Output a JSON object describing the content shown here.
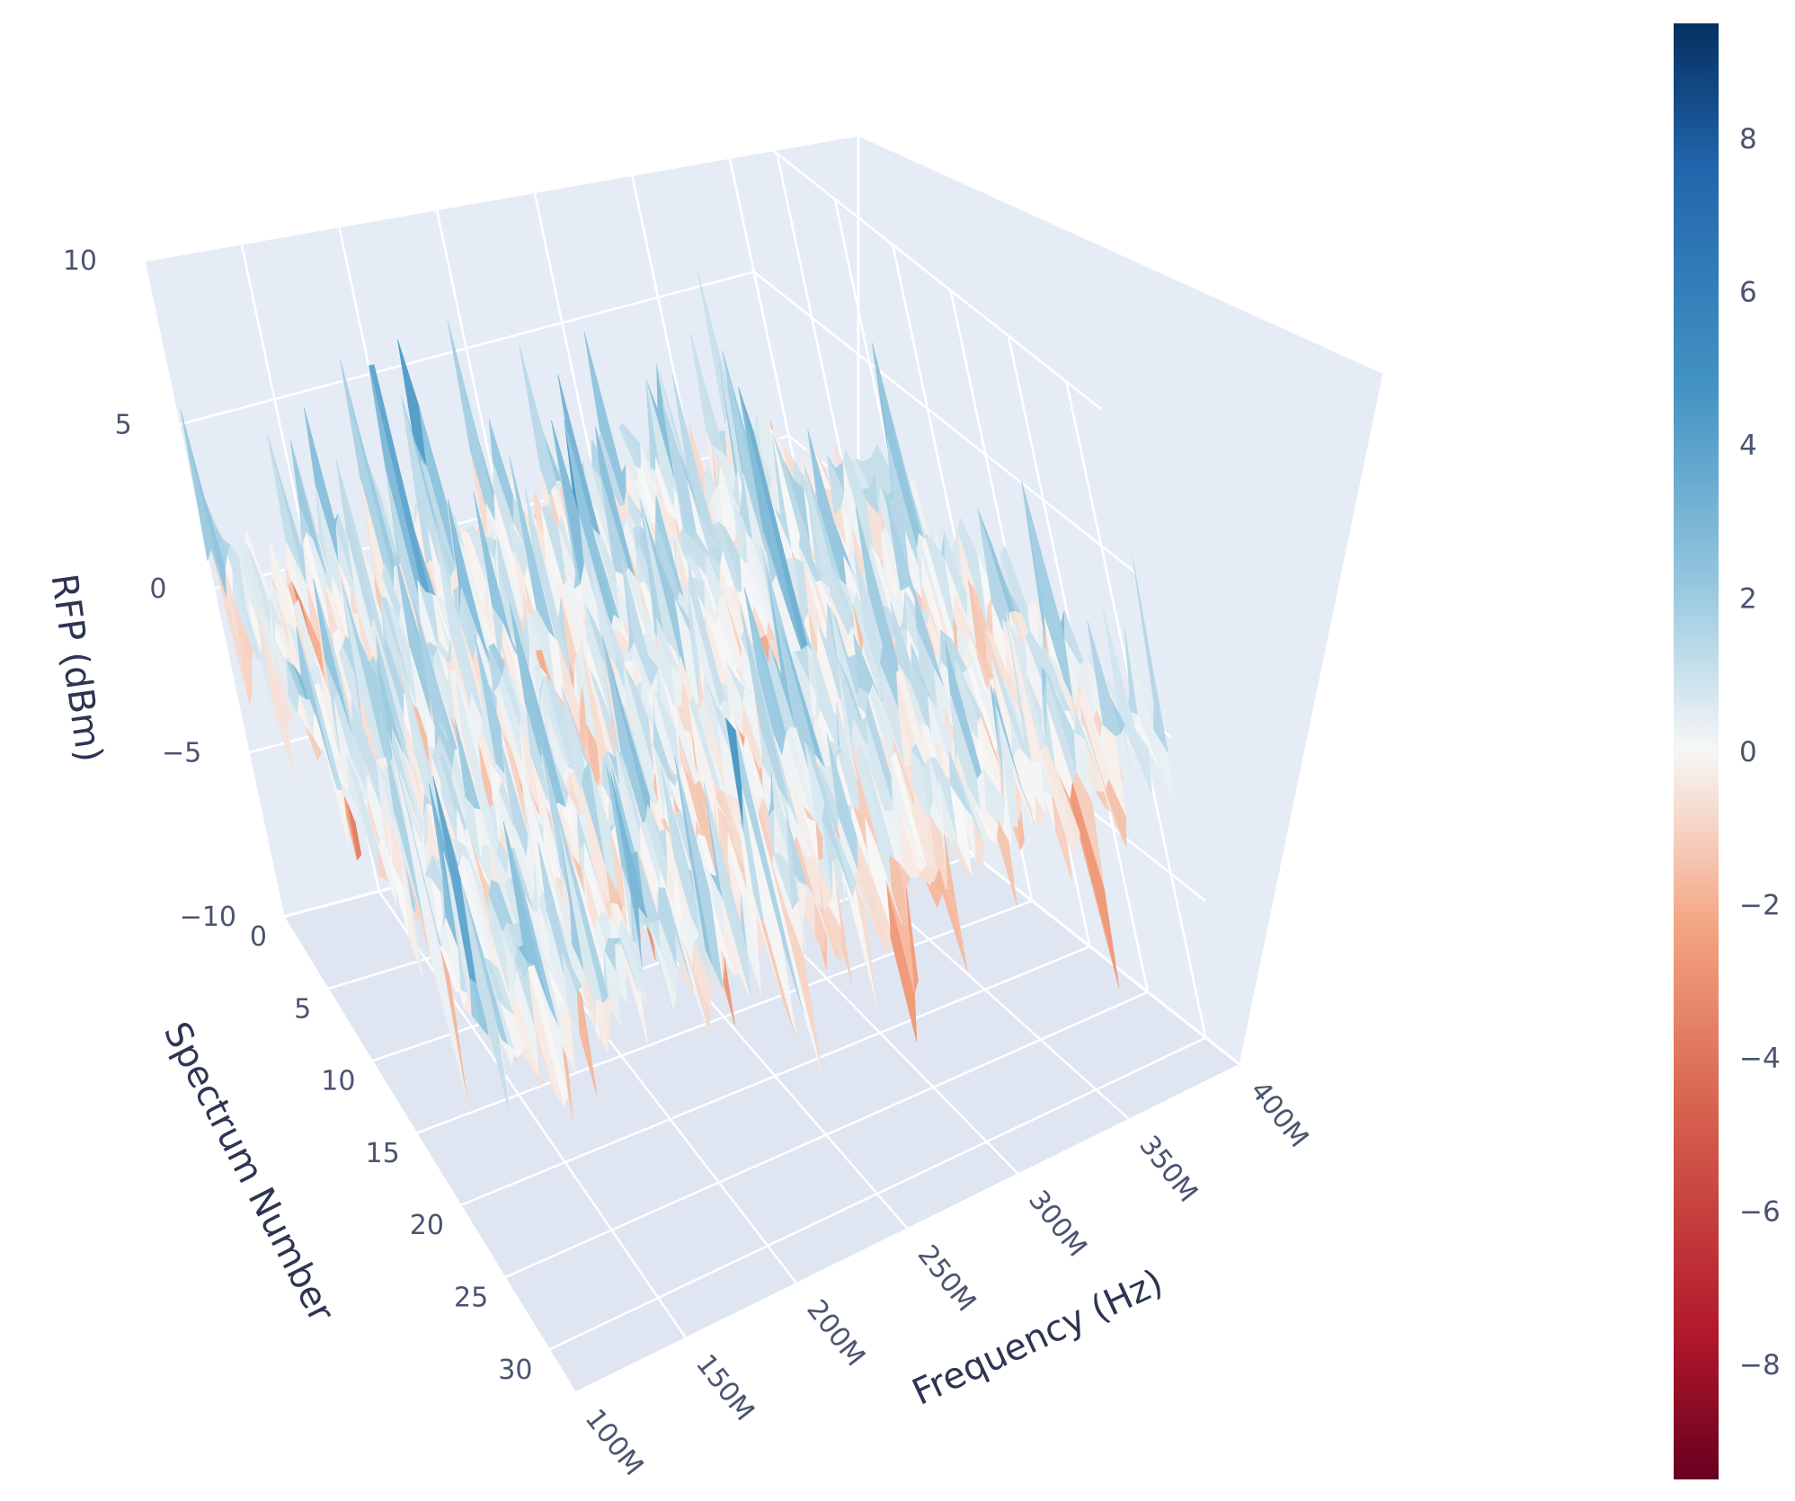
{
  "chart_data": {
    "type": "surface",
    "title": "",
    "x_axis": {
      "title": "Frequency (Hz)",
      "range": [
        100000000,
        400000000
      ],
      "tick_values": [
        100000000,
        150000000,
        200000000,
        250000000,
        300000000,
        350000000,
        400000000
      ],
      "tick_labels": [
        "100M",
        "150M",
        "200M",
        "250M",
        "300M",
        "350M",
        "400M"
      ]
    },
    "y_axis": {
      "title": "Spectrum Number",
      "range": [
        0,
        33
      ],
      "tick_values": [
        0,
        5,
        10,
        15,
        20,
        25,
        30
      ],
      "tick_labels": [
        "0",
        "5",
        "10",
        "15",
        "20",
        "25",
        "30"
      ]
    },
    "z_axis": {
      "title": "RFP (dBm)",
      "range": [
        -10,
        10
      ],
      "tick_values": [
        -10,
        -5,
        0,
        5,
        10
      ],
      "tick_labels": [
        "−10",
        "−5",
        "0",
        "5",
        "10"
      ]
    },
    "colorscale": "RdBu",
    "colorbar": {
      "range": [
        -9.5,
        9.5
      ],
      "tick_values": [
        8,
        6,
        4,
        2,
        0,
        -2,
        -4,
        -6,
        -8
      ],
      "tick_labels": [
        "8",
        "6",
        "4",
        "2",
        "0",
        "−2",
        "−4",
        "−6",
        "−8"
      ],
      "colors": {
        "min": "#67001f",
        "low": "#d6604d",
        "mid_low": "#f4a582",
        "mid": "#f7f7f7",
        "mid_high": "#92c5de",
        "high": "#4393c3",
        "max": "#053061"
      }
    },
    "scene_background": "#e5ecf6",
    "grid": true,
    "legend": "colorbar-right",
    "surface_summary": {
      "x_samples": 120,
      "y_samples": 34,
      "z_min": -9.5,
      "z_max": 9.5,
      "typical_range": [
        -4,
        4
      ]
    }
  }
}
